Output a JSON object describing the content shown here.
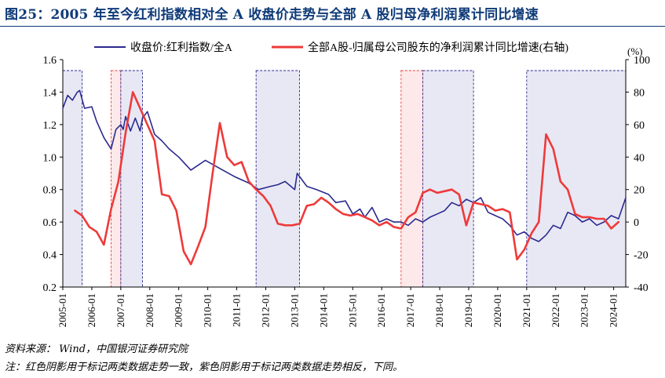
{
  "title": "图25：2005 年至今红利指数相对全 A 收盘价走势与全部 A 股归母净利润累计同比增速",
  "source": "资料来源：  Wind，中国银河证券研究院",
  "footnote": "注：红色阴影用于标记两类数据走势一致，紫色阴影用于标记两类数据走势相反，下同。",
  "colors": {
    "left_series": "#2b2a8f",
    "right_series": "#ee3a3a",
    "purple_shade": "#e8e8f4",
    "red_shade": "#fde9e9",
    "title": "#0f3a78"
  },
  "chart_data": {
    "type": "line",
    "title": "",
    "unit_right": "(%)",
    "x_tick_labels": [
      "2005-01",
      "2006-01",
      "2007-01",
      "2008-01",
      "2009-01",
      "2010-01",
      "2011-01",
      "2012-01",
      "2013-01",
      "2014-01",
      "2015-01",
      "2016-01",
      "2017-01",
      "2018-01",
      "2019-01",
      "2020-01",
      "2021-01",
      "2022-01",
      "2023-01",
      "2024-01"
    ],
    "x_range": [
      "2005-01",
      "2024-06"
    ],
    "y_left": {
      "range": [
        0.2,
        1.6
      ],
      "ticks": [
        "0.2",
        "0.4",
        "0.6",
        "0.8",
        "1.0",
        "1.2",
        "1.4",
        "1.6"
      ]
    },
    "y_right": {
      "range": [
        -40,
        100
      ],
      "ticks": [
        "-40",
        "-20",
        "0",
        "20",
        "40",
        "60",
        "80",
        "100"
      ]
    },
    "legend": {
      "placement": "top",
      "entries": [
        "收盘价:红利指数/全A",
        "全部A股-归属母公司股东的净利润累计同比增速(右轴)"
      ]
    },
    "shaded_regions": [
      {
        "kind": "purple",
        "start": "2005-01",
        "end": "2005-09"
      },
      {
        "kind": "red",
        "start": "2006-09",
        "end": "2007-01"
      },
      {
        "kind": "purple",
        "start": "2007-01",
        "end": "2007-10"
      },
      {
        "kind": "purple",
        "start": "2011-09",
        "end": "2013-03"
      },
      {
        "kind": "red",
        "start": "2016-09",
        "end": "2017-06"
      },
      {
        "kind": "purple",
        "start": "2017-06",
        "end": "2019-03"
      },
      {
        "kind": "purple",
        "start": "2021-01",
        "end": "2024-06"
      }
    ],
    "series": [
      {
        "name": "收盘价:红利指数/全A",
        "axis": "left",
        "x": [
          "2005-01",
          "2005-03",
          "2005-05",
          "2005-07",
          "2005-08",
          "2005-10",
          "2006-01",
          "2006-03",
          "2006-06",
          "2006-09",
          "2006-11",
          "2007-01",
          "2007-02",
          "2007-03",
          "2007-05",
          "2007-07",
          "2007-09",
          "2007-10",
          "2007-12",
          "2008-03",
          "2008-06",
          "2008-09",
          "2009-01",
          "2009-06",
          "2009-12",
          "2010-06",
          "2010-12",
          "2011-06",
          "2011-10",
          "2012-03",
          "2012-06",
          "2012-09",
          "2013-01",
          "2013-02",
          "2013-06",
          "2013-10",
          "2014-03",
          "2014-06",
          "2014-10",
          "2015-01",
          "2015-04",
          "2015-06",
          "2015-09",
          "2015-12",
          "2016-03",
          "2016-06",
          "2016-09",
          "2016-12",
          "2017-03",
          "2017-06",
          "2017-09",
          "2017-12",
          "2018-03",
          "2018-06",
          "2018-09",
          "2018-12",
          "2019-03",
          "2019-06",
          "2019-09",
          "2019-12",
          "2020-03",
          "2020-06",
          "2020-09",
          "2020-12",
          "2021-03",
          "2021-06",
          "2021-09",
          "2021-12",
          "2022-03",
          "2022-06",
          "2022-09",
          "2022-12",
          "2023-03",
          "2023-06",
          "2023-09",
          "2023-12",
          "2024-03",
          "2024-06"
        ],
        "values": [
          1.3,
          1.38,
          1.35,
          1.4,
          1.41,
          1.3,
          1.31,
          1.22,
          1.12,
          1.05,
          1.17,
          1.2,
          1.17,
          1.25,
          1.16,
          1.24,
          1.16,
          1.24,
          1.28,
          1.14,
          1.1,
          1.05,
          1.0,
          0.92,
          0.98,
          0.93,
          0.88,
          0.84,
          0.8,
          0.82,
          0.83,
          0.85,
          0.8,
          0.9,
          0.82,
          0.8,
          0.77,
          0.72,
          0.73,
          0.65,
          0.68,
          0.63,
          0.69,
          0.6,
          0.62,
          0.6,
          0.6,
          0.58,
          0.62,
          0.6,
          0.63,
          0.65,
          0.67,
          0.72,
          0.7,
          0.74,
          0.72,
          0.75,
          0.66,
          0.64,
          0.62,
          0.58,
          0.52,
          0.54,
          0.5,
          0.48,
          0.52,
          0.58,
          0.56,
          0.66,
          0.64,
          0.6,
          0.62,
          0.58,
          0.6,
          0.64,
          0.62,
          0.75
        ]
      },
      {
        "name": "全部A股-归属母公司股东的净利润累计同比增速(右轴)",
        "axis": "right",
        "x": [
          "2005-06",
          "2005-09",
          "2005-12",
          "2006-03",
          "2006-06",
          "2006-09",
          "2006-12",
          "2007-03",
          "2007-06",
          "2007-09",
          "2007-12",
          "2008-03",
          "2008-06",
          "2008-09",
          "2008-12",
          "2009-03",
          "2009-06",
          "2009-09",
          "2009-12",
          "2010-03",
          "2010-06",
          "2010-09",
          "2010-12",
          "2011-03",
          "2011-06",
          "2011-09",
          "2011-12",
          "2012-03",
          "2012-06",
          "2012-09",
          "2012-12",
          "2013-03",
          "2013-06",
          "2013-09",
          "2013-12",
          "2014-03",
          "2014-06",
          "2014-09",
          "2014-12",
          "2015-03",
          "2015-06",
          "2015-09",
          "2015-12",
          "2016-03",
          "2016-06",
          "2016-09",
          "2016-12",
          "2017-03",
          "2017-06",
          "2017-09",
          "2017-12",
          "2018-03",
          "2018-06",
          "2018-09",
          "2018-12",
          "2019-03",
          "2019-06",
          "2019-09",
          "2019-12",
          "2020-03",
          "2020-06",
          "2020-09",
          "2020-12",
          "2021-03",
          "2021-06",
          "2021-09",
          "2021-12",
          "2022-03",
          "2022-06",
          "2022-09",
          "2022-12",
          "2023-03",
          "2023-06",
          "2023-09",
          "2023-12",
          "2024-03"
        ],
        "values": [
          7,
          4,
          -3,
          -6,
          -14,
          8,
          25,
          55,
          80,
          70,
          60,
          50,
          17,
          16,
          7,
          -18,
          -26,
          -15,
          -3,
          30,
          61,
          40,
          35,
          37,
          25,
          20,
          16,
          10,
          -1,
          -2,
          -2,
          -1,
          10,
          11,
          15,
          12,
          8,
          5,
          4,
          5,
          3,
          1,
          -2,
          0,
          -3,
          -4,
          3,
          6,
          18,
          20,
          18,
          19,
          20,
          17,
          -2,
          12,
          11,
          10,
          7,
          8,
          6,
          -23,
          -17,
          -7,
          0,
          54,
          45,
          25,
          20,
          5,
          3,
          3,
          2,
          2,
          -4,
          0
        ]
      }
    ]
  }
}
